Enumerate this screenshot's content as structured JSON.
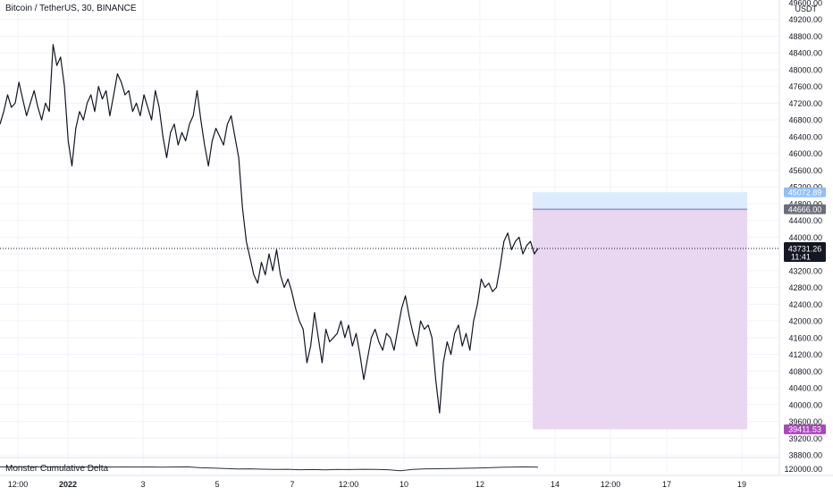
{
  "title": "Bitcoin / TetherUS, 30, BINANCE",
  "indicator_name": "Monster Cumulative Delta",
  "currency": "USDT",
  "colors": {
    "price_line": "#131722",
    "grid": "#f0f3fa",
    "stop_zone": "#e9d7f1",
    "target_zone": "#dcebfd",
    "entry_line": "#7b6fa8",
    "stop_badge": "#ab47bc",
    "target_badge": "#90bff9",
    "entry_badge": "#6a6d78",
    "last_badge": "#131722"
  },
  "chart_data": {
    "type": "line",
    "title": "Bitcoin / TetherUS, 30, BINANCE",
    "yunit": "USDT",
    "ylim": [
      38800,
      49600
    ],
    "y_ticks": [
      49200,
      48800,
      48400,
      48000,
      47600,
      47200,
      46800,
      46400,
      46000,
      45600,
      45200,
      44800,
      44400,
      44000,
      43600,
      43200,
      42800,
      42400,
      42000,
      41600,
      41200,
      40800,
      40400,
      40000,
      39600,
      39200,
      38800
    ],
    "y_top_tick_label": "49600.00",
    "x_ticks": [
      "12:00",
      "2022",
      "3",
      "5",
      "7",
      "12:00",
      "10",
      "12",
      "14",
      "12:00",
      "17",
      "19"
    ],
    "series": [
      {
        "values": [
          46700,
          47000,
          47400,
          47100,
          47200,
          47700,
          47300,
          46900,
          47200,
          47500,
          47100,
          46800,
          47200,
          47000,
          48600,
          48100,
          48300,
          47600,
          46300,
          45700,
          46600,
          47000,
          46800,
          47200,
          47400,
          47000,
          47600,
          47300,
          47500,
          46900,
          47400,
          47900,
          47700,
          47400,
          47500,
          47000,
          47200,
          46900,
          47400,
          47100,
          46800,
          47500,
          47100,
          46400,
          45900,
          46500,
          46700,
          46200,
          46500,
          46300,
          46700,
          46900,
          47500,
          46800,
          46200,
          45700,
          46300,
          46600,
          46400,
          46200,
          46700,
          46900,
          46400,
          45900,
          44700,
          43900,
          43500,
          43100,
          42900,
          43400,
          43100,
          43600,
          43200,
          43700,
          43100,
          42800,
          43000,
          42700,
          42300,
          42000,
          41800,
          41000,
          41400,
          42200,
          41600,
          41000,
          41800,
          41500,
          41600,
          41700,
          42000,
          41600,
          41900,
          41400,
          41700,
          41200,
          40600,
          41100,
          41600,
          41800,
          41500,
          41300,
          41700,
          41600,
          41300,
          41800,
          42300,
          42600,
          42100,
          41700,
          41400,
          42000,
          41800,
          41900,
          41600,
          40600,
          39800,
          41000,
          41500,
          41200,
          41700,
          41900,
          41400,
          41700,
          41300,
          42000,
          42400,
          43000,
          42800,
          42900,
          42700,
          42800,
          43300,
          43900,
          44100,
          43700,
          43900,
          44000,
          43600,
          43800,
          43900,
          43600,
          43731.26
        ],
        "last_value": 43731.26,
        "countdown": "11:41"
      }
    ],
    "position_tool": {
      "target": 45072.89,
      "entry": 44666.0,
      "stop": 39411.53
    },
    "indicator": {
      "name": "Monster Cumulative Delta",
      "tick_label": "120000.00",
      "values": [
        0.5,
        0.48,
        0.52,
        0.5,
        0.47,
        0.49,
        0.51,
        0.46,
        0.5,
        0.45,
        0.48,
        0.43,
        0.46,
        0.4,
        0.46,
        0.5,
        0.2,
        0.05,
        -0.1,
        -0.25,
        -0.2,
        -0.3,
        -0.4,
        -0.35,
        -0.5,
        -0.45,
        -0.55,
        -0.4,
        -0.45,
        -0.35,
        -0.4,
        -0.5,
        -0.85,
        -0.4,
        -0.2,
        -0.15,
        -0.1,
        0.0,
        0.05,
        0.2,
        0.35,
        0.45,
        0.5,
        0.42
      ]
    }
  }
}
